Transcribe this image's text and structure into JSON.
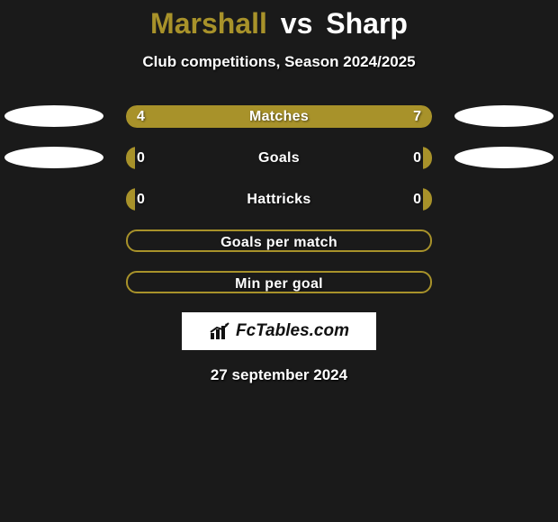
{
  "title": {
    "player_a": "Marshall",
    "vs": "vs",
    "player_b": "Sharp",
    "color_a": "#a8922a",
    "color_b": "#ffffff"
  },
  "subtitle": "Club competitions, Season 2024/2025",
  "colors": {
    "background": "#1a1a1a",
    "ellipse": "#ffffff",
    "fill_a": "#a8922a",
    "fill_b": "#a8922a",
    "bar_border": "#a8922a",
    "text": "#ffffff"
  },
  "rows": [
    {
      "label": "Matches",
      "a": "4",
      "b": "7",
      "a_pct": 36,
      "b_pct": 64,
      "style": "split",
      "show_ellipses": true
    },
    {
      "label": "Goals",
      "a": "0",
      "b": "0",
      "a_pct": 3,
      "b_pct": 3,
      "style": "split",
      "show_ellipses": true
    },
    {
      "label": "Hattricks",
      "a": "0",
      "b": "0",
      "a_pct": 3,
      "b_pct": 3,
      "style": "split",
      "show_ellipses": false
    },
    {
      "label": "Goals per match",
      "a": "",
      "b": "",
      "a_pct": 0,
      "b_pct": 0,
      "style": "empty",
      "show_ellipses": false
    },
    {
      "label": "Min per goal",
      "a": "",
      "b": "",
      "a_pct": 0,
      "b_pct": 0,
      "style": "empty",
      "show_ellipses": false
    }
  ],
  "brand": "FcTables.com",
  "date": "27 september 2024"
}
